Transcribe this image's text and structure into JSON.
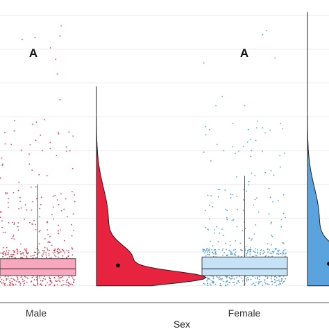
{
  "chart_data": {
    "type": "raincloud",
    "xlabel": "Sex",
    "ylabel": "",
    "categories": [
      "Male",
      "Female"
    ],
    "annotations": [
      "A",
      "A"
    ],
    "grid": true,
    "colors": {
      "Male": {
        "box_fill": "#f7a8be",
        "cloud_fill": "#e8233f",
        "points": "#d8233f"
      },
      "Female": {
        "box_fill": "#c6e2f6",
        "cloud_fill": "#5ba3de",
        "points": "#3a8fd0"
      }
    },
    "series": [
      {
        "name": "Male",
        "box": {
          "q1": 0.6,
          "median": 1.0,
          "q3": 1.6,
          "whisker_low": 0.0,
          "whisker_high": 6.0
        },
        "mean": 1.2
      },
      {
        "name": "Female",
        "box": {
          "q1": 0.6,
          "median": 1.0,
          "q3": 1.7,
          "whisker_low": 0.0,
          "whisker_high": 6.5
        },
        "mean": 1.3
      }
    ],
    "ylim": [
      -1,
      16.5
    ]
  }
}
